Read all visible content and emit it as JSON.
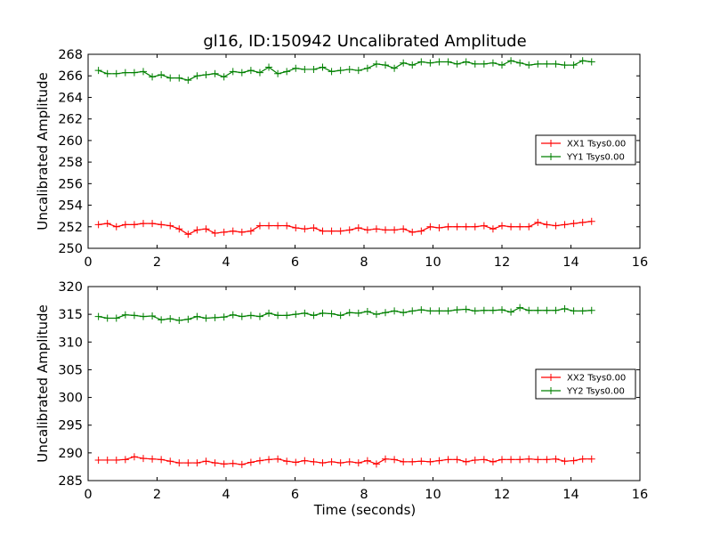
{
  "figure": {
    "title": "gl16, ID:150942 Uncalibrated Amplitude",
    "xlabel": "Time (seconds)"
  },
  "chart_data": [
    {
      "type": "line",
      "ylabel": "Uncalibrated Amplitude",
      "xlim": [
        0,
        16
      ],
      "ylim": [
        250,
        268
      ],
      "xticks": [
        0,
        2,
        4,
        6,
        8,
        10,
        12,
        14,
        16
      ],
      "yticks": [
        250,
        252,
        254,
        256,
        258,
        260,
        262,
        264,
        266,
        268
      ],
      "legend_position": "center-right",
      "series": [
        {
          "name": "XX1 Tsys0.00",
          "color": "#ff0000",
          "x": [
            0.3,
            0.56,
            0.82,
            1.08,
            1.34,
            1.6,
            1.86,
            2.12,
            2.38,
            2.64,
            2.9,
            3.16,
            3.42,
            3.68,
            3.94,
            4.2,
            4.46,
            4.72,
            4.98,
            5.24,
            5.5,
            5.76,
            6.02,
            6.28,
            6.54,
            6.8,
            7.06,
            7.32,
            7.58,
            7.84,
            8.1,
            8.36,
            8.62,
            8.88,
            9.14,
            9.4,
            9.66,
            9.92,
            10.18,
            10.44,
            10.7,
            10.96,
            11.22,
            11.48,
            11.74,
            12.0,
            12.26,
            12.52,
            12.78,
            13.04,
            13.3,
            13.56,
            13.82,
            14.08,
            14.34,
            14.6
          ],
          "y": [
            252.2,
            252.3,
            252.0,
            252.2,
            252.2,
            252.3,
            252.3,
            252.2,
            252.1,
            251.8,
            251.3,
            251.7,
            251.8,
            251.4,
            251.5,
            251.6,
            251.5,
            251.6,
            252.1,
            252.1,
            252.1,
            252.1,
            251.9,
            251.8,
            251.9,
            251.6,
            251.6,
            251.6,
            251.7,
            251.9,
            251.7,
            251.8,
            251.7,
            251.7,
            251.8,
            251.5,
            251.6,
            252.0,
            251.9,
            252.0,
            252.0,
            252.0,
            252.0,
            252.1,
            251.8,
            252.1,
            252.0,
            252.0,
            252.0,
            252.4,
            252.2,
            252.1,
            252.2,
            252.3,
            252.4,
            252.5
          ]
        },
        {
          "name": "YY1 Tsys0.00",
          "color": "#008000",
          "x": [
            0.3,
            0.56,
            0.82,
            1.08,
            1.34,
            1.6,
            1.86,
            2.12,
            2.38,
            2.64,
            2.9,
            3.16,
            3.42,
            3.68,
            3.94,
            4.2,
            4.46,
            4.72,
            4.98,
            5.24,
            5.5,
            5.76,
            6.02,
            6.28,
            6.54,
            6.8,
            7.06,
            7.32,
            7.58,
            7.84,
            8.1,
            8.36,
            8.62,
            8.88,
            9.14,
            9.4,
            9.66,
            9.92,
            10.18,
            10.44,
            10.7,
            10.96,
            11.22,
            11.48,
            11.74,
            12.0,
            12.26,
            12.52,
            12.78,
            13.04,
            13.3,
            13.56,
            13.82,
            14.08,
            14.34,
            14.6
          ],
          "y": [
            266.5,
            266.2,
            266.2,
            266.3,
            266.3,
            266.4,
            265.9,
            266.1,
            265.8,
            265.8,
            265.6,
            266.0,
            266.1,
            266.2,
            265.9,
            266.4,
            266.3,
            266.5,
            266.3,
            266.8,
            266.2,
            266.4,
            266.7,
            266.6,
            266.6,
            266.8,
            266.4,
            266.5,
            266.6,
            266.5,
            266.7,
            267.1,
            267.0,
            266.7,
            267.2,
            267.0,
            267.3,
            267.2,
            267.3,
            267.3,
            267.1,
            267.3,
            267.1,
            267.1,
            267.2,
            267.0,
            267.4,
            267.2,
            267.0,
            267.1,
            267.1,
            267.1,
            267.0,
            267.0,
            267.4,
            267.3
          ]
        }
      ]
    },
    {
      "type": "line",
      "ylabel": "Uncalibrated Amplitude",
      "xlim": [
        0,
        16
      ],
      "ylim": [
        285,
        320
      ],
      "xticks": [
        0,
        2,
        4,
        6,
        8,
        10,
        12,
        14,
        16
      ],
      "yticks": [
        285,
        290,
        295,
        300,
        305,
        310,
        315,
        320
      ],
      "legend_position": "center-right",
      "series": [
        {
          "name": "XX2 Tsys0.00",
          "color": "#ff0000",
          "x": [
            0.3,
            0.56,
            0.82,
            1.08,
            1.34,
            1.6,
            1.86,
            2.12,
            2.38,
            2.64,
            2.9,
            3.16,
            3.42,
            3.68,
            3.94,
            4.2,
            4.46,
            4.72,
            4.98,
            5.24,
            5.5,
            5.76,
            6.02,
            6.28,
            6.54,
            6.8,
            7.06,
            7.32,
            7.58,
            7.84,
            8.1,
            8.36,
            8.62,
            8.88,
            9.14,
            9.4,
            9.66,
            9.92,
            10.18,
            10.44,
            10.7,
            10.96,
            11.22,
            11.48,
            11.74,
            12.0,
            12.26,
            12.52,
            12.78,
            13.04,
            13.3,
            13.56,
            13.82,
            14.08,
            14.34,
            14.6
          ],
          "y": [
            288.7,
            288.7,
            288.7,
            288.8,
            289.3,
            289.0,
            288.9,
            288.8,
            288.5,
            288.2,
            288.2,
            288.2,
            288.5,
            288.2,
            288.0,
            288.1,
            287.9,
            288.3,
            288.6,
            288.8,
            288.9,
            288.5,
            288.3,
            288.6,
            288.4,
            288.2,
            288.4,
            288.2,
            288.4,
            288.2,
            288.6,
            288.0,
            288.9,
            288.8,
            288.4,
            288.4,
            288.5,
            288.4,
            288.6,
            288.8,
            288.8,
            288.4,
            288.7,
            288.8,
            288.4,
            288.8,
            288.8,
            288.8,
            288.9,
            288.8,
            288.8,
            288.9,
            288.5,
            288.6,
            288.9,
            288.9
          ]
        },
        {
          "name": "YY2 Tsys0.00",
          "color": "#008000",
          "x": [
            0.3,
            0.56,
            0.82,
            1.08,
            1.34,
            1.6,
            1.86,
            2.12,
            2.38,
            2.64,
            2.9,
            3.16,
            3.42,
            3.68,
            3.94,
            4.2,
            4.46,
            4.72,
            4.98,
            5.24,
            5.5,
            5.76,
            6.02,
            6.28,
            6.54,
            6.8,
            7.06,
            7.32,
            7.58,
            7.84,
            8.1,
            8.36,
            8.62,
            8.88,
            9.14,
            9.4,
            9.66,
            9.92,
            10.18,
            10.44,
            10.7,
            10.96,
            11.22,
            11.48,
            11.74,
            12.0,
            12.26,
            12.52,
            12.78,
            13.04,
            13.3,
            13.56,
            13.82,
            14.08,
            14.34,
            14.6
          ],
          "y": [
            314.6,
            314.3,
            314.3,
            314.9,
            314.8,
            314.6,
            314.7,
            314.0,
            314.2,
            313.9,
            314.1,
            314.6,
            314.3,
            314.4,
            314.5,
            314.9,
            314.6,
            314.8,
            314.6,
            315.2,
            314.8,
            314.8,
            315.0,
            315.2,
            314.8,
            315.2,
            315.1,
            314.8,
            315.3,
            315.2,
            315.5,
            315.0,
            315.3,
            315.6,
            315.3,
            315.6,
            315.8,
            315.6,
            315.6,
            315.6,
            315.8,
            315.9,
            315.6,
            315.7,
            315.7,
            315.8,
            315.4,
            316.2,
            315.7,
            315.7,
            315.7,
            315.7,
            316.0,
            315.6,
            315.6,
            315.7
          ]
        }
      ]
    }
  ]
}
